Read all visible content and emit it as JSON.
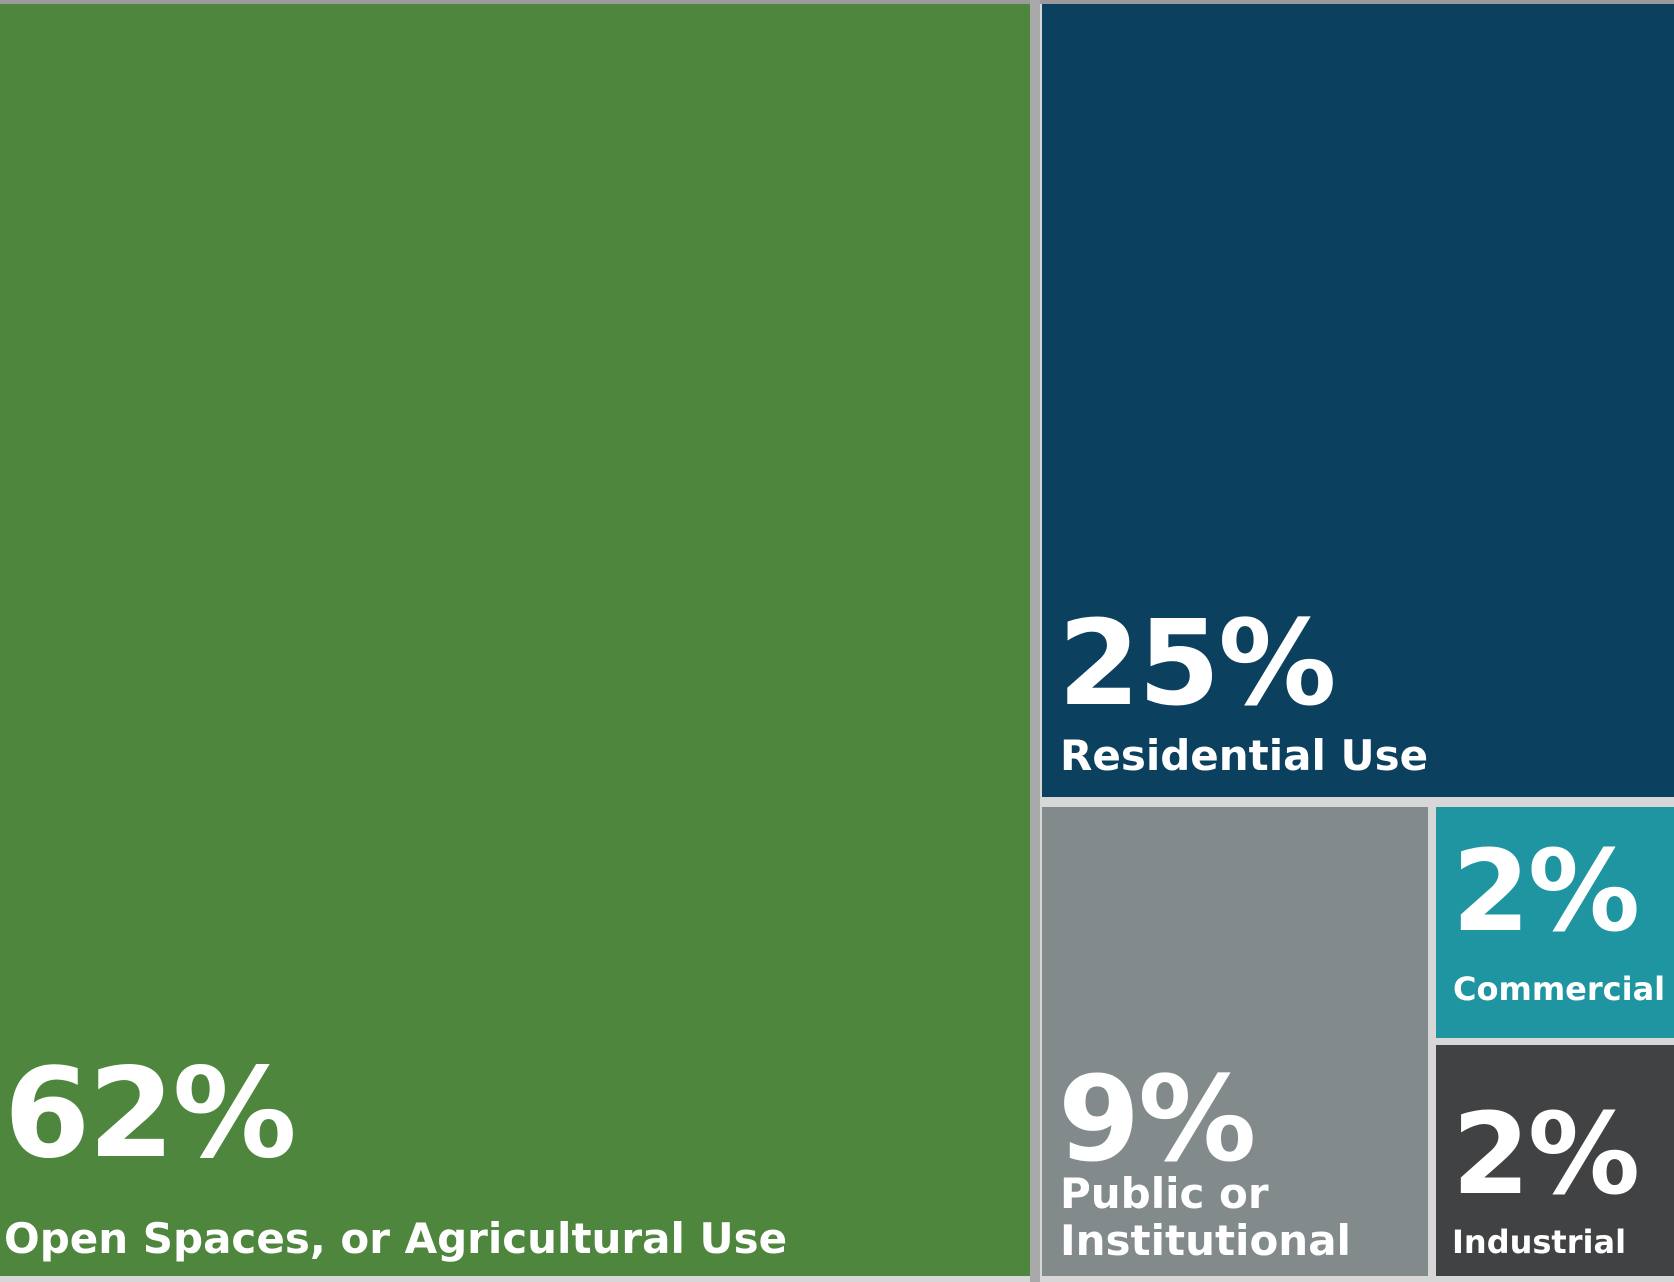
{
  "chart_data": {
    "type": "treemap",
    "series": [
      {
        "name": "Open Spaces, or Agricultural Use",
        "value": 62,
        "label": "62%",
        "color": "#4e863d"
      },
      {
        "name": "Residential Use",
        "value": 25,
        "label": "25%",
        "color": "#0b405f"
      },
      {
        "name": "Public or Institutional",
        "value": 9,
        "label": "9%",
        "color": "#838a8c"
      },
      {
        "name": "Commercial",
        "value": 2,
        "label": "2%",
        "color": "#1e95a0"
      },
      {
        "name": "Industrial",
        "value": 2,
        "label": "2%",
        "color": "#414244"
      }
    ]
  }
}
